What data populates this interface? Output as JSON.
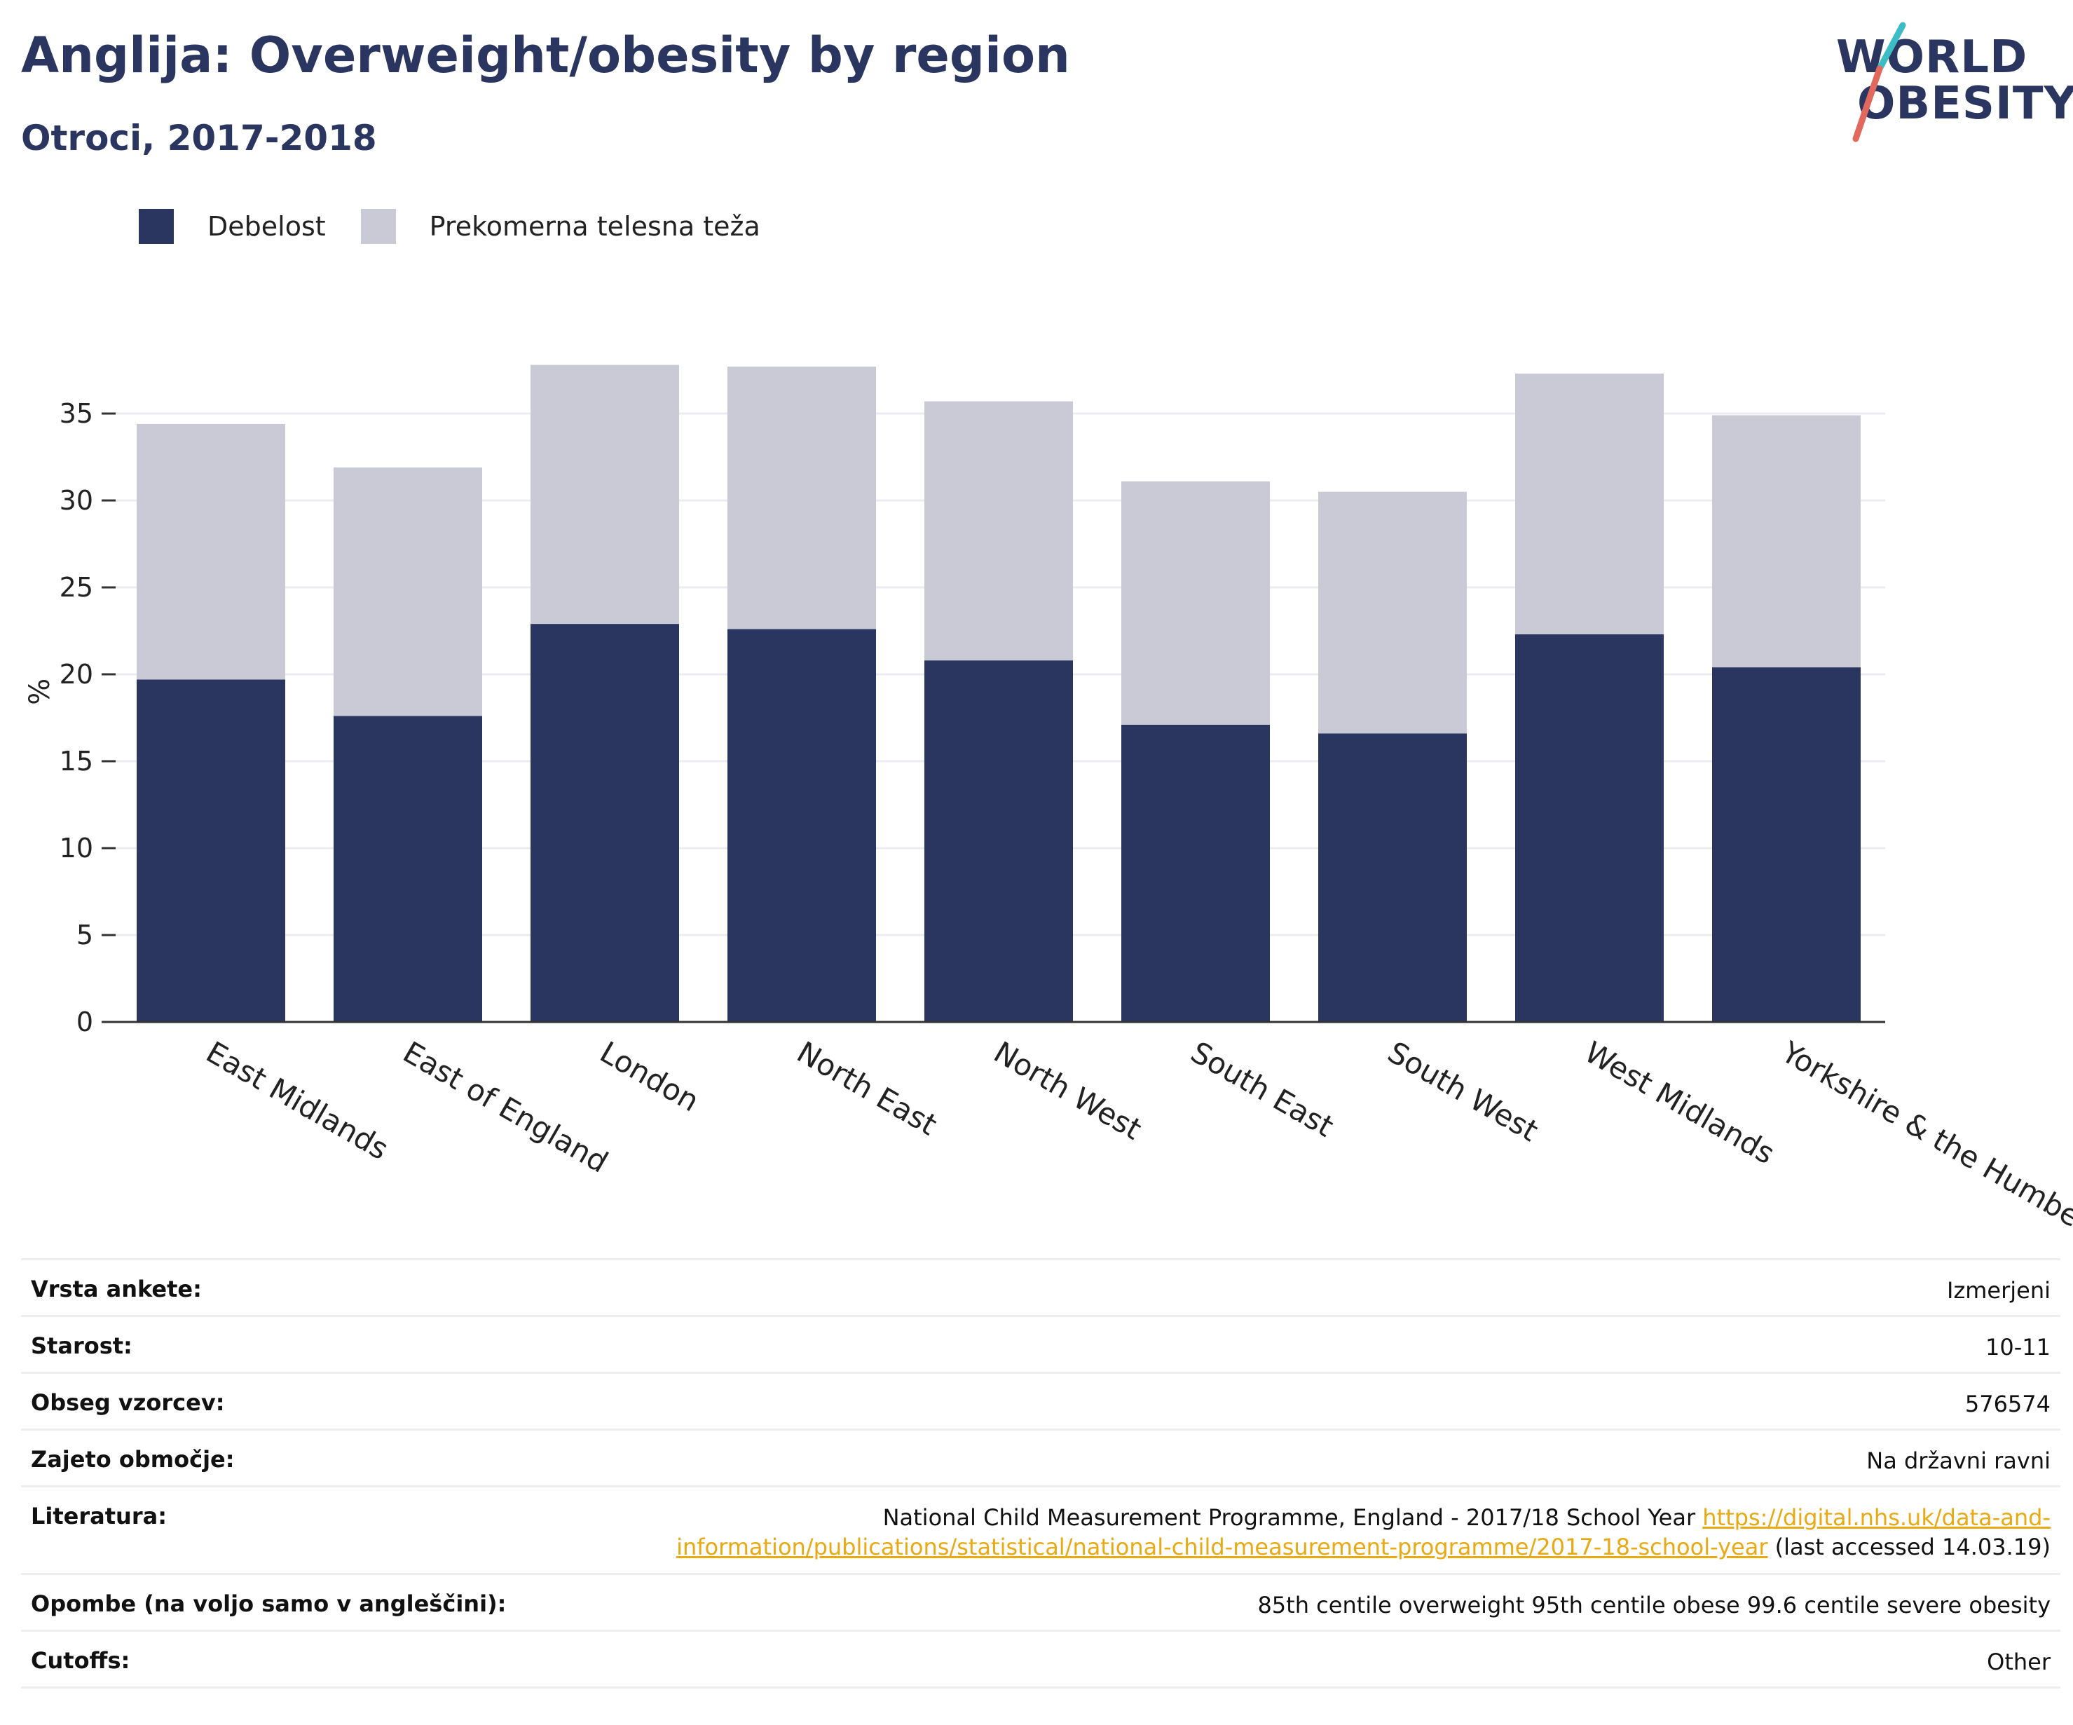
{
  "header": {
    "title": "Anglija: Overweight/obesity by region",
    "subtitle": "Otroci, 2017-2018"
  },
  "logo": {
    "line1": "WORLD",
    "line2": "OBESITY"
  },
  "colors": {
    "obesity": "#2b3660",
    "overweight": "#c9cad6",
    "accent_teal": "#3cbcc4",
    "accent_coral": "#e0685c"
  },
  "chart_data": {
    "type": "bar",
    "stacked": true,
    "categories": [
      "East Midlands",
      "East of England",
      "London",
      "North East",
      "North West",
      "South East",
      "South West",
      "West Midlands",
      "Yorkshire & the Humber"
    ],
    "series": [
      {
        "name": "Debelost",
        "values": [
          19.7,
          17.6,
          22.9,
          22.6,
          20.8,
          17.1,
          16.6,
          22.3,
          20.4
        ]
      },
      {
        "name": "Prekomerna telesna teža",
        "values": [
          14.7,
          14.3,
          14.9,
          15.1,
          14.9,
          14.0,
          13.9,
          15.0,
          14.5
        ]
      }
    ],
    "ylabel": "%",
    "xlabel": "",
    "yticks": [
      0,
      5,
      10,
      15,
      20,
      25,
      30,
      35
    ],
    "ylim": [
      0,
      38
    ],
    "grid": true,
    "legend": "top-left"
  },
  "meta": {
    "survey_type": {
      "label": "Vrsta ankete:",
      "value": "Izmerjeni"
    },
    "age": {
      "label": "Starost:",
      "value": "10-11"
    },
    "sample_size": {
      "label": "Obseg vzorcev:",
      "value": "576574"
    },
    "area": {
      "label": "Zajeto območje:",
      "value": "Na državni ravni"
    },
    "literature": {
      "label": "Literatura:",
      "text": "National Child Measurement Programme, England - 2017/18 School Year ",
      "link_part1": "https://digital.nhs.uk/data-and-",
      "link_part2": "information/publications/statistical/national-child-measurement-programme/2017-18-school-year",
      "suffix": " (last accessed 14.03.19)"
    },
    "notes": {
      "label": "Opombe (na voljo samo v angleščini):",
      "value": "85th centile overweight 95th centile obese 99.6 centile severe obesity"
    },
    "cutoffs": {
      "label": "Cutoffs:",
      "value": "Other"
    }
  }
}
